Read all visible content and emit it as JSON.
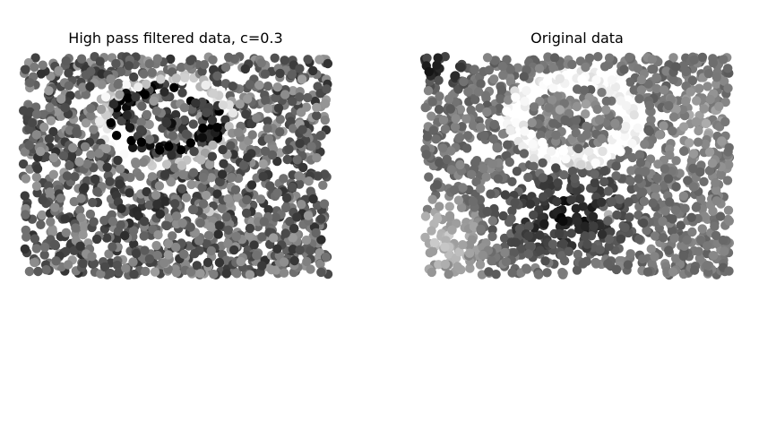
{
  "chart_data": [
    {
      "type": "scatter",
      "title": "High pass filtered data, c=0.3",
      "axes": "off",
      "colormap": "gray",
      "grid": false,
      "n_points": 1600,
      "x_range": [
        0.0,
        1.0
      ],
      "y_range": [
        0.0,
        1.0
      ],
      "marker": "circle",
      "description_of_values": "grayscale intensity 0 (black) to 1 (white)",
      "background_level": 0.4,
      "noise_amplitude": 0.22,
      "features": [
        {
          "shape": "ring",
          "cx": 0.47,
          "cy": 0.71,
          "rx": 0.2,
          "ry": 0.18,
          "width": 0.035,
          "level": 0.78
        },
        {
          "shape": "ring_inner_dark",
          "cx": 0.47,
          "cy": 0.71,
          "rx": 0.16,
          "ry": 0.14,
          "width": 0.03,
          "level": 0.1
        },
        {
          "shape": "ellipse",
          "cx": 0.47,
          "cy": 0.7,
          "rx": 0.08,
          "ry": 0.05,
          "level": 0.2
        },
        {
          "shape": "ellipse",
          "cx": 0.45,
          "cy": 0.33,
          "rx": 0.3,
          "ry": 0.25,
          "level": 0.35
        },
        {
          "shape": "ellipse",
          "cx": 0.62,
          "cy": 0.28,
          "rx": 0.06,
          "ry": 0.06,
          "level": 0.7
        }
      ]
    },
    {
      "type": "scatter",
      "title": "Original data",
      "axes": "off",
      "colormap": "gray",
      "grid": false,
      "n_points": 1600,
      "x_range": [
        0.0,
        1.0
      ],
      "y_range": [
        0.0,
        1.0
      ],
      "marker": "circle",
      "description_of_values": "grayscale intensity 0 (black) to 1 (white)",
      "background_level": 0.45,
      "noise_amplitude": 0.1,
      "features": [
        {
          "shape": "ring",
          "cx": 0.49,
          "cy": 0.72,
          "rx": 0.19,
          "ry": 0.19,
          "width": 0.04,
          "level": 0.97
        },
        {
          "shape": "ellipse",
          "cx": 0.49,
          "cy": 0.72,
          "rx": 0.15,
          "ry": 0.14,
          "level": 0.62
        },
        {
          "shape": "ellipse",
          "cx": 0.49,
          "cy": 0.7,
          "rx": 0.08,
          "ry": 0.04,
          "level": 0.25
        },
        {
          "shape": "ellipse",
          "cx": 0.47,
          "cy": 0.28,
          "rx": 0.3,
          "ry": 0.26,
          "level": 0.05
        },
        {
          "shape": "corner_dark",
          "cx": 0.05,
          "cy": 0.95,
          "rx": 0.15,
          "ry": 0.12,
          "level": 0.05
        },
        {
          "shape": "edge_light",
          "cx": 0.05,
          "cy": 0.15,
          "rx": 0.18,
          "ry": 0.25,
          "level": 0.78
        },
        {
          "shape": "ellipse",
          "cx": 0.6,
          "cy": 0.28,
          "rx": 0.04,
          "ry": 0.05,
          "level": 0.8
        },
        {
          "shape": "edge_light",
          "cx": 0.9,
          "cy": 0.7,
          "rx": 0.15,
          "ry": 0.3,
          "level": 0.62
        }
      ]
    }
  ]
}
